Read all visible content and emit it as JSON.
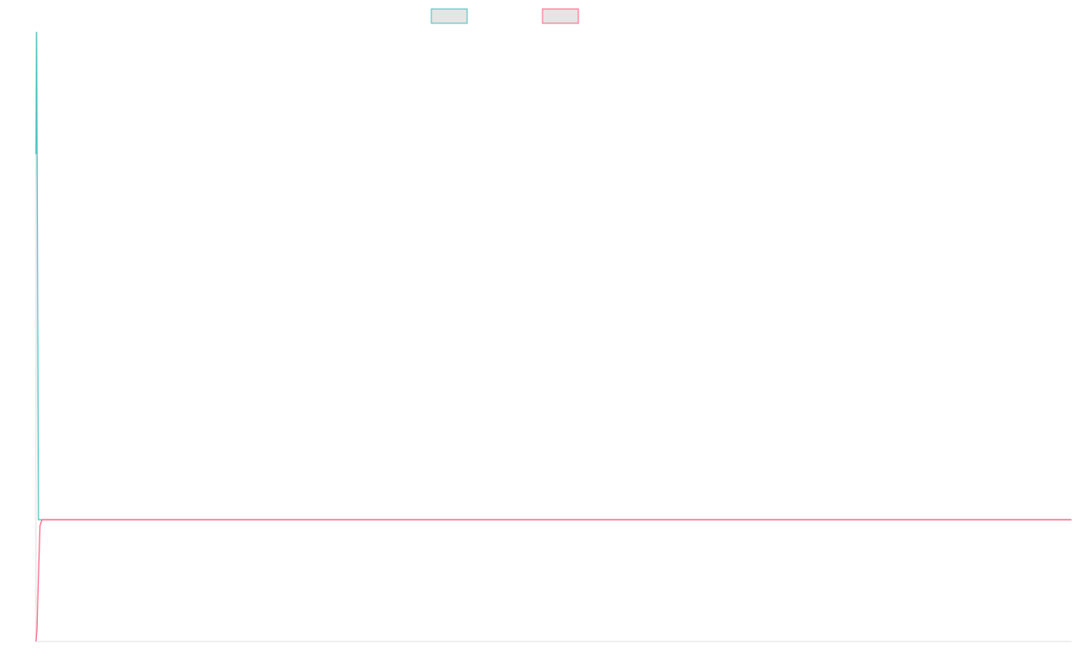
{
  "chart_data": {
    "type": "line",
    "series": [
      {
        "color": "#4bc0c0",
        "points": [
          [
            0,
            0.8
          ],
          [
            0.07,
            1.0
          ],
          [
            0.25,
            0.2
          ],
          [
            0.6,
            0.2
          ],
          [
            100,
            0.2
          ]
        ]
      },
      {
        "color": "#ff6384",
        "points": [
          [
            0,
            0.0
          ],
          [
            0.1,
            0.02
          ],
          [
            0.2,
            0.08
          ],
          [
            0.4,
            0.19
          ],
          [
            0.6,
            0.2
          ],
          [
            100,
            0.2
          ]
        ]
      }
    ],
    "xlim": [
      0,
      100
    ],
    "ylim": [
      0,
      1
    ],
    "grid": false,
    "legend_position": "top-center",
    "legend_fill": "#e5e5e5",
    "axis_color": "#e0e0e0"
  }
}
